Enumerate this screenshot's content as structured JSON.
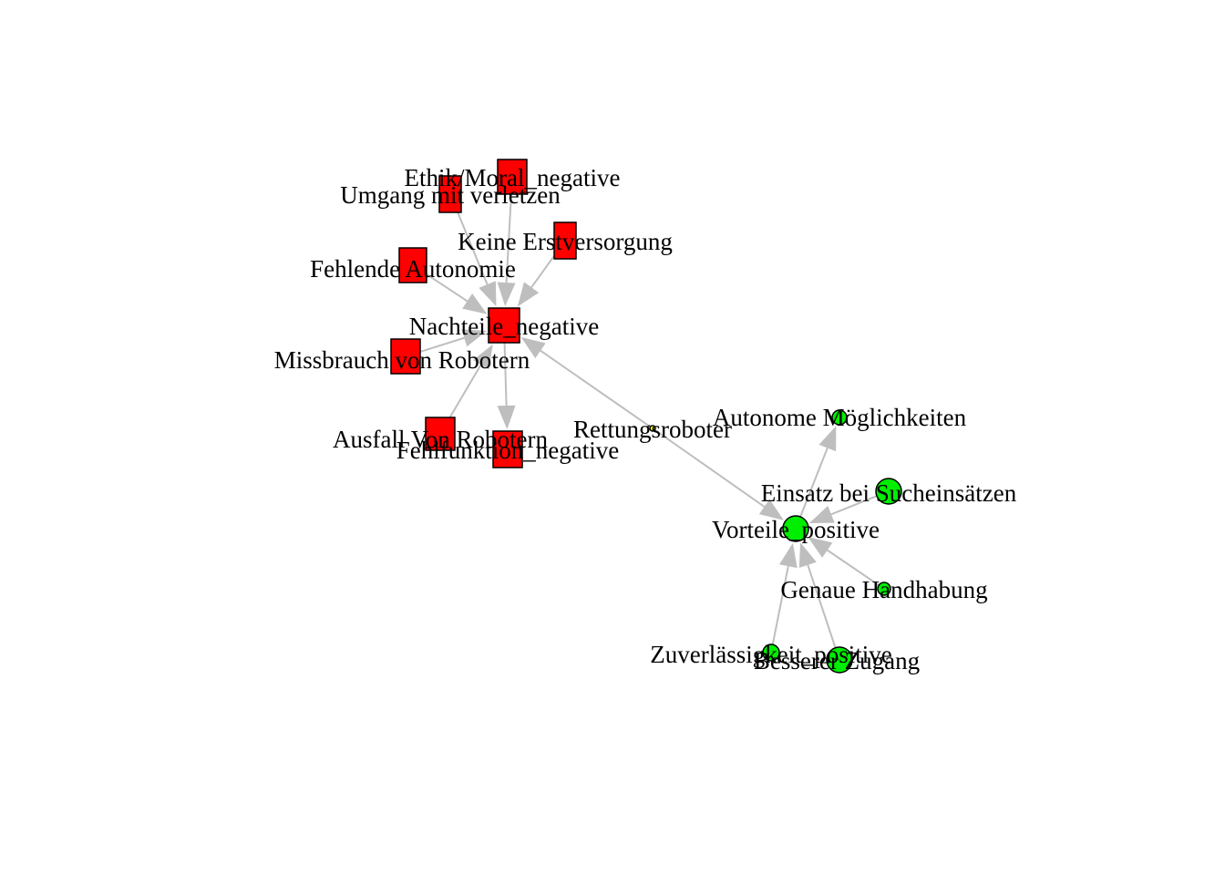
{
  "colors": {
    "negative": "#ff0000",
    "positive": "#00ee00",
    "neutral": "#ffff00",
    "edge": "#bebebe"
  },
  "nodes": [
    {
      "id": "nachteile",
      "label": "Nachteile_negative",
      "shape": "square",
      "group": "negative"
    },
    {
      "id": "ethik",
      "label": "Ethik/Moral_negative",
      "shape": "square",
      "group": "negative"
    },
    {
      "id": "umgang",
      "label": "Umgang mit verletzen",
      "shape": "square",
      "group": "negative"
    },
    {
      "id": "erstversorgung",
      "label": "Keine Erstversorgung",
      "shape": "square",
      "group": "negative"
    },
    {
      "id": "autonomie",
      "label": "Fehlende Autonomie",
      "shape": "square",
      "group": "negative"
    },
    {
      "id": "missbrauch",
      "label": "Missbrauch von Robotern",
      "shape": "square",
      "group": "negative"
    },
    {
      "id": "ausfall",
      "label": "Ausfall Von Robotern",
      "shape": "square",
      "group": "negative"
    },
    {
      "id": "fehlfunktion",
      "label": "Fehlfunktion_negative",
      "shape": "square",
      "group": "negative"
    },
    {
      "id": "rettungsroboter",
      "label": "Rettungsroboter",
      "shape": "circle",
      "group": "neutral"
    },
    {
      "id": "vorteile",
      "label": "Vorteile_positive",
      "shape": "circle",
      "group": "positive"
    },
    {
      "id": "autonome",
      "label": "Autonome Möglichkeiten",
      "shape": "circle",
      "group": "positive"
    },
    {
      "id": "suche",
      "label": "Einsatz bei Sucheinsätzen",
      "shape": "circle",
      "group": "positive"
    },
    {
      "id": "handhabung",
      "label": "Genaue Handhabung",
      "shape": "circle",
      "group": "positive"
    },
    {
      "id": "zuverlaessigkeit",
      "label": "Zuverlässigkeit_positive",
      "shape": "circle",
      "group": "positive"
    },
    {
      "id": "zugang",
      "label": "Besserer Zugang",
      "shape": "circle",
      "group": "positive"
    }
  ],
  "edges": [
    {
      "from": "ethik",
      "to": "nachteile"
    },
    {
      "from": "umgang",
      "to": "nachteile"
    },
    {
      "from": "erstversorgung",
      "to": "nachteile"
    },
    {
      "from": "autonomie",
      "to": "nachteile"
    },
    {
      "from": "missbrauch",
      "to": "nachteile"
    },
    {
      "from": "ausfall",
      "to": "nachteile"
    },
    {
      "from": "nachteile",
      "to": "fehlfunktion"
    },
    {
      "from": "rettungsroboter",
      "to": "nachteile"
    },
    {
      "from": "rettungsroboter",
      "to": "vorteile"
    },
    {
      "from": "vorteile",
      "to": "autonome"
    },
    {
      "from": "suche",
      "to": "vorteile"
    },
    {
      "from": "handhabung",
      "to": "vorteile"
    },
    {
      "from": "zuverlaessigkeit",
      "to": "vorteile"
    },
    {
      "from": "zugang",
      "to": "vorteile"
    }
  ]
}
